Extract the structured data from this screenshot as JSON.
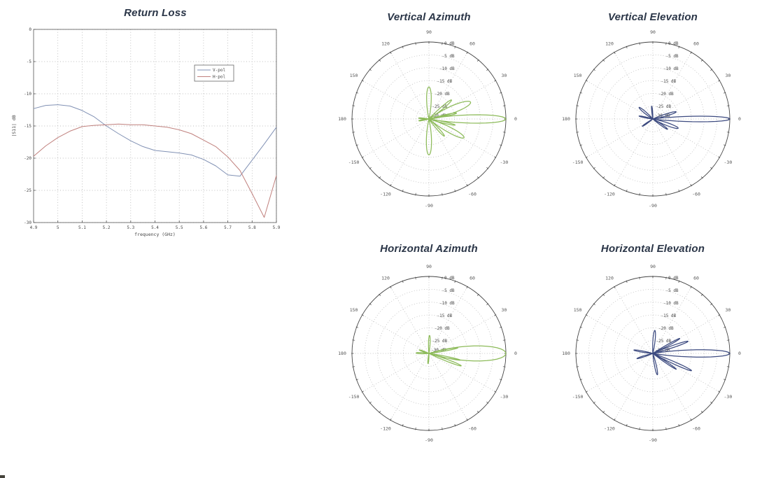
{
  "artifact": {
    "color": "#44423a"
  },
  "chart_data": [
    {
      "id": "return-loss",
      "type": "line",
      "title": "Return Loss",
      "xlabel": "frequency (GHz)",
      "ylabel": "|S11| dB",
      "xlim": [
        4.9,
        5.9
      ],
      "ylim": [
        -30,
        0
      ],
      "xticks": [
        4.9,
        5,
        5.1,
        5.2,
        5.3,
        5.4,
        5.5,
        5.6,
        5.7,
        5.8,
        5.9
      ],
      "xtick_labels": [
        "4.9",
        "5",
        "5.1",
        "5.2",
        "5.3",
        "5.4",
        "5.5",
        "5.6",
        "5.7",
        "5.8",
        "5.9"
      ],
      "yticks": [
        0,
        -5,
        -10,
        -15,
        -20,
        -25,
        -30
      ],
      "ytick_labels": [
        "0",
        "-5",
        "-10",
        "-15",
        "-20",
        "-25",
        "-30"
      ],
      "grid": true,
      "legend_position": "upper-right-inside",
      "series": [
        {
          "name": "V-pol",
          "color": "#8191b4",
          "x": [
            4.9,
            4.95,
            5.0,
            5.05,
            5.1,
            5.15,
            5.2,
            5.25,
            5.3,
            5.35,
            5.4,
            5.45,
            5.5,
            5.55,
            5.6,
            5.65,
            5.7,
            5.75,
            5.8,
            5.85,
            5.9
          ],
          "y": [
            -12.3,
            -11.8,
            -11.7,
            -11.9,
            -12.6,
            -13.6,
            -15.0,
            -16.2,
            -17.3,
            -18.2,
            -18.8,
            -19.0,
            -19.2,
            -19.5,
            -20.2,
            -21.2,
            -22.6,
            -22.8,
            -20.3,
            -17.8,
            -15.2
          ]
        },
        {
          "name": "H-pol",
          "color": "#c0807d",
          "x": [
            4.9,
            4.95,
            5.0,
            5.05,
            5.1,
            5.15,
            5.2,
            5.25,
            5.3,
            5.35,
            5.4,
            5.45,
            5.5,
            5.55,
            5.6,
            5.65,
            5.7,
            5.75,
            5.8,
            5.85,
            5.9
          ],
          "y": [
            -19.7,
            -18.1,
            -16.8,
            -15.8,
            -15.1,
            -14.9,
            -14.8,
            -14.7,
            -14.8,
            -14.8,
            -15.0,
            -15.2,
            -15.6,
            -16.2,
            -17.2,
            -18.2,
            -19.8,
            -21.9,
            -25.5,
            -29.2,
            -22.7
          ]
        }
      ]
    },
    {
      "id": "vertical-azimuth",
      "type": "polar",
      "title": "Vertical Azimuth",
      "line_color": "#8dbb5a",
      "rlim": [
        -30,
        0
      ],
      "ring_step_db": 5,
      "ring_labels": [
        "0 dB",
        "-5 dB",
        "-10 dB",
        "-15 dB",
        "-20 dB",
        "-25 dB",
        "-30 dB"
      ],
      "angle_labels": [
        "0",
        "30",
        "60",
        "90",
        "120",
        "150",
        "180",
        "-150",
        "-120",
        "-90",
        "-60",
        "-30"
      ],
      "lobes": [
        {
          "angle_deg": 0,
          "peak_db": 0,
          "half_width_deg": 13,
          "sharpness": 2.4
        },
        {
          "angle_deg": 12,
          "peak_db": -19,
          "half_width_deg": 6,
          "sharpness": 1.8
        },
        {
          "angle_deg": 22,
          "peak_db": -12.5,
          "half_width_deg": 15,
          "sharpness": 1.4
        },
        {
          "angle_deg": 40,
          "peak_db": -18.5,
          "half_width_deg": 8,
          "sharpness": 1.5
        },
        {
          "angle_deg": 90,
          "peak_db": -17.5,
          "half_width_deg": 13,
          "sharpness": 1.3
        },
        {
          "angle_deg": -13,
          "peak_db": -19.5,
          "half_width_deg": 6,
          "sharpness": 1.8
        },
        {
          "angle_deg": -28,
          "peak_db": -14.5,
          "half_width_deg": 13,
          "sharpness": 1.5
        },
        {
          "angle_deg": -48,
          "peak_db": -21,
          "half_width_deg": 8,
          "sharpness": 1.5
        },
        {
          "angle_deg": -90,
          "peak_db": -16,
          "half_width_deg": 13,
          "sharpness": 1.3
        },
        {
          "angle_deg": 175,
          "peak_db": -26,
          "half_width_deg": 7,
          "sharpness": 1.2
        },
        {
          "angle_deg": -170,
          "peak_db": -26,
          "half_width_deg": 7,
          "sharpness": 1.2
        }
      ]
    },
    {
      "id": "vertical-elevation",
      "type": "polar",
      "title": "Vertical Elevation",
      "line_color": "#3d4b80",
      "rlim": [
        -30,
        0
      ],
      "ring_step_db": 5,
      "ring_labels": [
        "0 dB",
        "-5 dB",
        "-10 dB",
        "-15 dB",
        "-20 dB",
        "-25 dB",
        "-30 dB"
      ],
      "angle_labels": [
        "0",
        "30",
        "60",
        "90",
        "120",
        "150",
        "180",
        "-150",
        "-120",
        "-90",
        "-60",
        "-30"
      ],
      "lobes": [
        {
          "angle_deg": 0,
          "peak_db": 0,
          "half_width_deg": 9,
          "sharpness": 2.6
        },
        {
          "angle_deg": 17,
          "peak_db": -20.5,
          "half_width_deg": 8,
          "sharpness": 1.5
        },
        {
          "angle_deg": -20,
          "peak_db": -19.5,
          "half_width_deg": 10,
          "sharpness": 1.5
        },
        {
          "angle_deg": -35,
          "peak_db": -23,
          "half_width_deg": 7,
          "sharpness": 1.4
        },
        {
          "angle_deg": 140,
          "peak_db": -23,
          "half_width_deg": 9,
          "sharpness": 1.3
        },
        {
          "angle_deg": 168,
          "peak_db": -24.5,
          "half_width_deg": 6,
          "sharpness": 1.3
        },
        {
          "angle_deg": -145,
          "peak_db": -25,
          "half_width_deg": 6,
          "sharpness": 1.3
        },
        {
          "angle_deg": 95,
          "peak_db": -25,
          "half_width_deg": 6,
          "sharpness": 1.3
        }
      ]
    },
    {
      "id": "horizontal-azimuth",
      "type": "polar",
      "title": "Horizontal Azimuth",
      "line_color": "#8dbb5a",
      "rlim": [
        -30,
        0
      ],
      "ring_step_db": 5,
      "ring_labels": [
        "0 dB",
        "-5 dB",
        "-10 dB",
        "-15 dB",
        "-20 dB",
        "-25 dB",
        "-30 dB"
      ],
      "angle_labels": [
        "0",
        "30",
        "60",
        "90",
        "120",
        "150",
        "180",
        "-150",
        "-120",
        "-90",
        "-60",
        "-30"
      ],
      "lobes": [
        {
          "angle_deg": 0,
          "peak_db": 0,
          "half_width_deg": 19,
          "sharpness": 1.5
        },
        {
          "angle_deg": 11,
          "peak_db": -18.5,
          "half_width_deg": 5,
          "sharpness": 2.0
        },
        {
          "angle_deg": -12,
          "peak_db": -17.5,
          "half_width_deg": 5,
          "sharpness": 2.0
        },
        {
          "angle_deg": -21,
          "peak_db": -16.5,
          "half_width_deg": 6,
          "sharpness": 2.0
        },
        {
          "angle_deg": 88,
          "peak_db": -23,
          "half_width_deg": 8,
          "sharpness": 1.3
        },
        {
          "angle_deg": 178,
          "peak_db": -25,
          "half_width_deg": 8,
          "sharpness": 1.2
        },
        {
          "angle_deg": 160,
          "peak_db": -26,
          "half_width_deg": 6,
          "sharpness": 1.2
        },
        {
          "angle_deg": -95,
          "peak_db": -26,
          "half_width_deg": 7,
          "sharpness": 1.2
        }
      ]
    },
    {
      "id": "horizontal-elevation",
      "type": "polar",
      "title": "Horizontal Elevation",
      "line_color": "#3d4b80",
      "rlim": [
        -30,
        0
      ],
      "ring_step_db": 5,
      "ring_labels": [
        "0 dB",
        "-5 dB",
        "-10 dB",
        "-15 dB",
        "-20 dB",
        "-25 dB",
        "-30 dB"
      ],
      "angle_labels": [
        "0",
        "30",
        "60",
        "90",
        "120",
        "150",
        "180",
        "-150",
        "-120",
        "-90",
        "-60",
        "-30"
      ],
      "lobes": [
        {
          "angle_deg": 0,
          "peak_db": 0,
          "half_width_deg": 11,
          "sharpness": 2.2
        },
        {
          "angle_deg": 19,
          "peak_db": -15.5,
          "half_width_deg": 6,
          "sharpness": 1.8
        },
        {
          "angle_deg": 29,
          "peak_db": -18,
          "half_width_deg": 5,
          "sharpness": 1.8
        },
        {
          "angle_deg": -24,
          "peak_db": -13.5,
          "half_width_deg": 6,
          "sharpness": 2.0
        },
        {
          "angle_deg": -34,
          "peak_db": -19,
          "half_width_deg": 5,
          "sharpness": 1.8
        },
        {
          "angle_deg": 85,
          "peak_db": -21,
          "half_width_deg": 9,
          "sharpness": 1.4
        },
        {
          "angle_deg": -78,
          "peak_db": -21.5,
          "half_width_deg": 8,
          "sharpness": 1.4
        },
        {
          "angle_deg": 170,
          "peak_db": -22.5,
          "half_width_deg": 6,
          "sharpness": 1.3
        },
        {
          "angle_deg": -162,
          "peak_db": -23.5,
          "half_width_deg": 6,
          "sharpness": 1.3
        }
      ]
    }
  ]
}
